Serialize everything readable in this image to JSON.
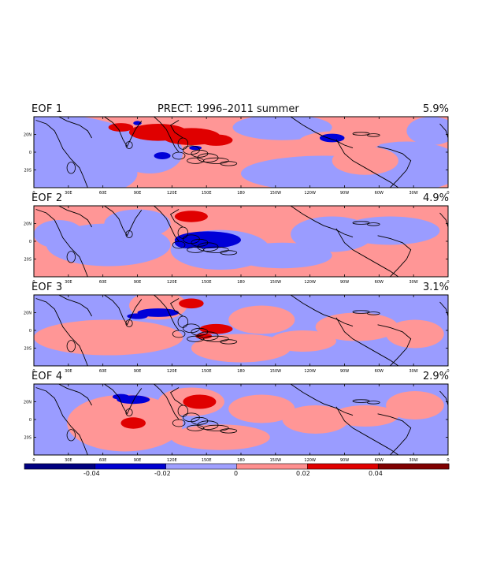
{
  "title": "PRECT: 1996–2011 summer",
  "panels": [
    {
      "label": "EOF 1",
      "variance": "5.9%"
    },
    {
      "label": "EOF 2",
      "variance": "4.9%"
    },
    {
      "label": "EOF 3",
      "variance": "3.1%"
    },
    {
      "label": "EOF 4",
      "variance": "2.9%"
    }
  ],
  "lat_ticks": [
    "20N",
    "0",
    "20S"
  ],
  "lon_ticks": [
    "0",
    "30E",
    "60E",
    "90E",
    "120E",
    "150E",
    "180",
    "150W",
    "120W",
    "90W",
    "60W",
    "30W",
    "0"
  ],
  "colorbar": {
    "colors": [
      "#000080",
      "#0000d0",
      "#a0a0ff",
      "#ff9090",
      "#e00000",
      "#800000"
    ],
    "labels": [
      "-0.04",
      "-0.02",
      "0",
      "0.02",
      "0.04"
    ]
  },
  "colors": {
    "neg_weak": "#9a9cff",
    "pos_weak": "#ff9696",
    "neg_strong": "#0000d8",
    "pos_strong": "#e00000"
  }
}
